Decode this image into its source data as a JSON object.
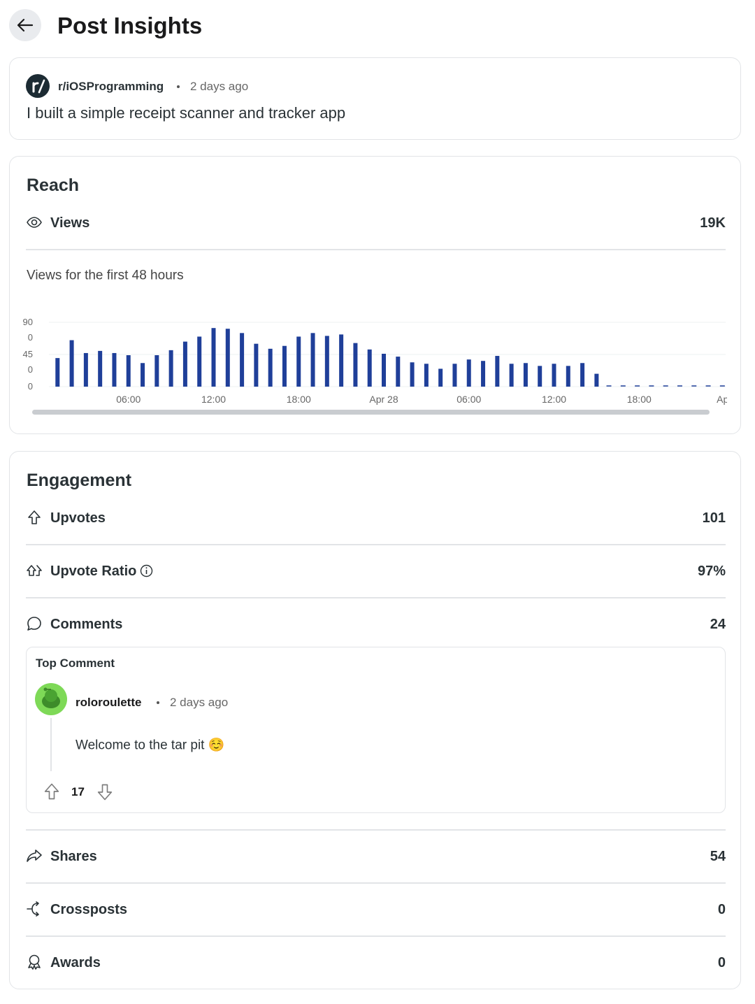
{
  "header": {
    "title": "Post Insights"
  },
  "post": {
    "community": "r/iOSProgramming",
    "time": "2 days ago",
    "title": "I built a simple receipt scanner and tracker app"
  },
  "reach": {
    "heading": "Reach",
    "views_label": "Views",
    "views_value": "19K",
    "chart_title": "Views for the first 48 hours"
  },
  "chart_data": {
    "type": "bar",
    "color": "#1f3f99",
    "grid": true,
    "x": [
      1,
      2,
      3,
      4,
      5,
      6,
      7,
      8,
      9,
      10,
      11,
      12,
      13,
      14,
      15,
      16,
      17,
      18,
      19,
      20,
      21,
      22,
      23,
      24,
      25,
      26,
      27,
      28,
      29,
      30,
      31,
      32,
      33,
      34,
      35,
      36,
      37,
      38,
      39,
      40,
      41,
      42,
      43,
      44,
      45,
      46,
      47,
      48
    ],
    "values": [
      400,
      650,
      470,
      500,
      470,
      440,
      330,
      440,
      510,
      630,
      700,
      820,
      810,
      750,
      600,
      530,
      570,
      700,
      750,
      710,
      730,
      610,
      520,
      460,
      420,
      340,
      320,
      250,
      320,
      380,
      360,
      430,
      320,
      330,
      290,
      320,
      290,
      330,
      180,
      null,
      null,
      null,
      null,
      null,
      null,
      null,
      null,
      null
    ],
    "xlim": [
      0,
      48
    ],
    "xticks": [
      {
        "value": 6,
        "label": "06:00"
      },
      {
        "value": 12,
        "label": "12:00"
      },
      {
        "value": 18,
        "label": "18:00"
      },
      {
        "value": 24,
        "label": "Apr 28"
      },
      {
        "value": 30,
        "label": "06:00"
      },
      {
        "value": 36,
        "label": "12:00"
      },
      {
        "value": 42,
        "label": "18:00"
      },
      {
        "value": 48,
        "label": "Apr"
      }
    ],
    "ylim": [
      0,
      900
    ],
    "yticks": [
      900,
      450,
      0
    ]
  },
  "engagement": {
    "heading": "Engagement",
    "upvotes_label": "Upvotes",
    "upvotes_value": 101,
    "ratio_label": "Upvote Ratio",
    "ratio_value": "97%",
    "comments_label": "Comments",
    "comments_value": 24,
    "top_comment": {
      "heading": "Top Comment",
      "author": "roloroulette",
      "time": "2 days ago",
      "body": "Welcome to the tar pit ☺️",
      "score": 17
    },
    "shares_label": "Shares",
    "shares_value": 54,
    "crossposts_label": "Crossposts",
    "crossposts_value": 0,
    "awards_label": "Awards",
    "awards_value": 0
  }
}
